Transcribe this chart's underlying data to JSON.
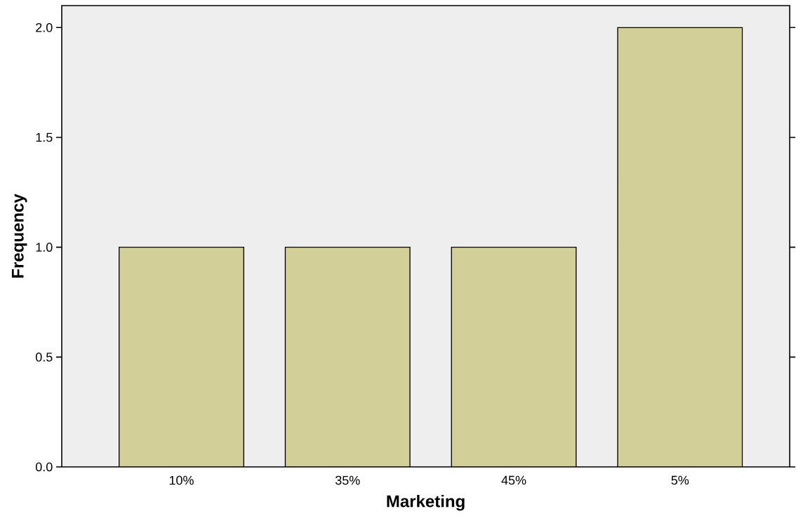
{
  "chart_data": {
    "type": "bar",
    "xlabel": "Marketing",
    "ylabel": "Frequency",
    "categories": [
      "10%",
      "35%",
      "45%",
      "5%"
    ],
    "values": [
      1,
      1,
      1,
      2
    ],
    "color": "#d3cf98",
    "ylim": [
      0,
      2.1
    ],
    "yticks": [
      {
        "value": 0,
        "label": "0.0"
      },
      {
        "value": 0.5,
        "label": "0.5"
      },
      {
        "value": 1,
        "label": "1.0"
      },
      {
        "value": 1.5,
        "label": "1.5"
      },
      {
        "value": 2,
        "label": "2.0"
      }
    ]
  }
}
